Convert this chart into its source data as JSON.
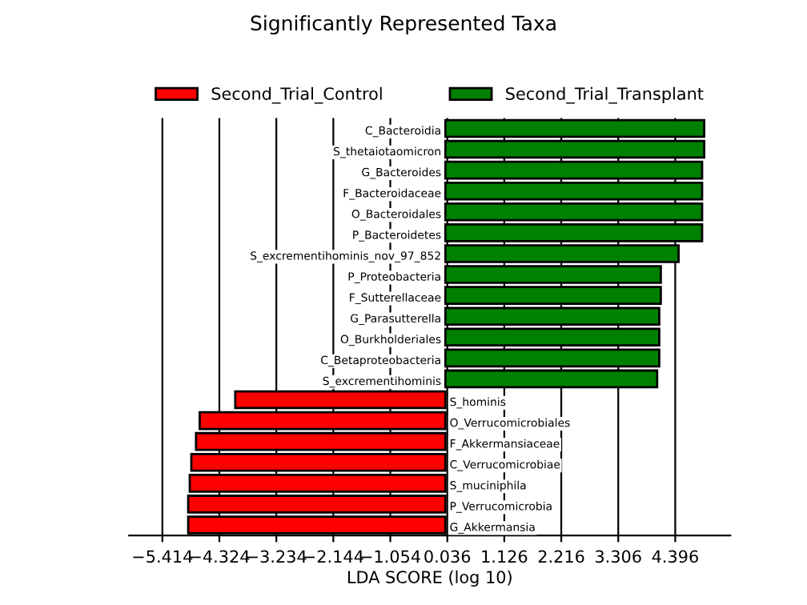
{
  "chart_data": {
    "type": "bar",
    "orientation": "horizontal",
    "title": "Significantly Represented Taxa",
    "xlabel": "LDA SCORE (log 10)",
    "categories": [
      "C_Bacteroidia",
      "S_thetaiotaomicron",
      "G_Bacteroides",
      "F_Bacteroidaceae",
      "O_Bacteroidales",
      "P_Bacteroidetes",
      "S_excrementihominis_nov_97_852",
      "P_Proteobacteria",
      "F_Sutterellaceae",
      "G_Parasutterella",
      "O_Burkholderiales",
      "C_Betaproteobacteria",
      "S_excrementihominis",
      "S_hominis",
      "O_Verrucomicrobiales",
      "F_Akkermansiaceae",
      "C_Verrucomicrobiae",
      "S_muciniphila",
      "P_Verrucomicrobia",
      "G_Akkermansia"
    ],
    "series": [
      {
        "name": "Second_Trial_Control",
        "color": "#ff0000",
        "values": [
          null,
          null,
          null,
          null,
          null,
          null,
          null,
          null,
          null,
          null,
          null,
          null,
          null,
          -4.02,
          -4.7,
          -4.77,
          -4.86,
          -4.89,
          -4.92,
          -4.92
        ]
      },
      {
        "name": "Second_Trial_Transplant",
        "color": "#008000",
        "values": [
          4.95,
          4.95,
          4.91,
          4.91,
          4.91,
          4.91,
          4.46,
          4.12,
          4.12,
          4.09,
          4.09,
          4.09,
          4.05,
          null,
          null,
          null,
          null,
          null,
          null,
          null
        ]
      }
    ],
    "xlim": [
      -6.05,
      5.45
    ],
    "xticks": [
      {
        "value": -5.414,
        "label": "−5.414"
      },
      {
        "value": -4.324,
        "label": "−4.324"
      },
      {
        "value": -3.234,
        "label": "−3.234"
      },
      {
        "value": -2.144,
        "label": "−2.144"
      },
      {
        "value": -1.054,
        "label": "−1.054"
      },
      0.036,
      1.126,
      2.216,
      3.306,
      4.396
    ],
    "grid": "x",
    "legend": "top"
  }
}
